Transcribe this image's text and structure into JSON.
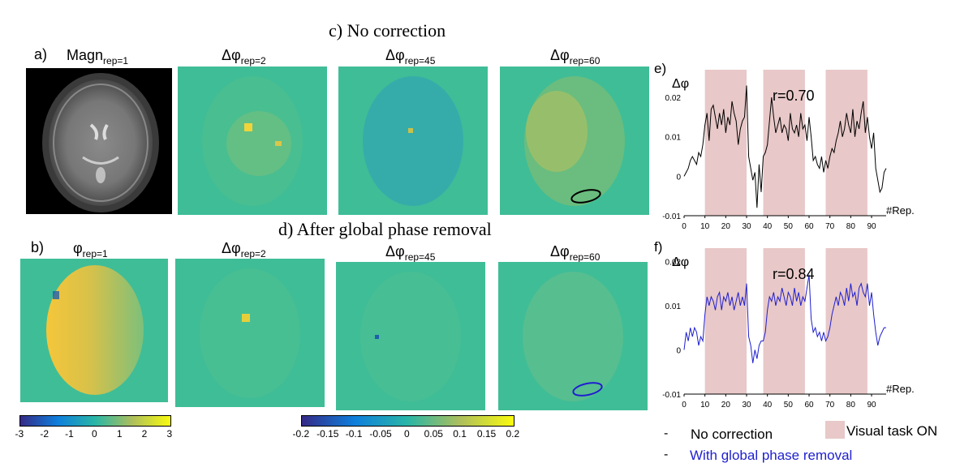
{
  "figure": {
    "section_c_title": "c)  No correction",
    "section_d_title": "d) After global phase removal",
    "panel_a_label": "a)",
    "panel_b_label": "b)",
    "magn_label": "Magn",
    "magn_sub": "rep=1",
    "phi_label": "φ",
    "phi_sub": "rep=1",
    "dphi_label": "Δφ",
    "sub_rep2": "rep=2",
    "sub_rep45": "rep=45",
    "sub_rep60": "rep=60"
  },
  "colorbars": {
    "left_ticks": [
      "-3",
      "-2",
      "-1",
      "0",
      "1",
      "2",
      "3"
    ],
    "right_ticks": [
      "-0.2",
      "-0.15",
      "-0.1",
      "-0.05",
      "0",
      "0.05",
      "0.1",
      "0.15",
      "0.2"
    ],
    "colors": {
      "low": "#352a87",
      "mid1": "#0f7fdc",
      "mid2": "#2ab6a6",
      "mid3": "#aebf5b",
      "high": "#f9fb0e"
    }
  },
  "chart_data": [
    {
      "type": "line",
      "panel_label": "e)",
      "ylabel": "Δφ",
      "xlabel": "#Rep.",
      "annotation": "r=0.70",
      "color": "#000000",
      "xlim": [
        0,
        97
      ],
      "ylim": [
        -0.01,
        0.027
      ],
      "x_ticks": [
        0,
        10,
        20,
        30,
        40,
        50,
        60,
        70,
        80,
        90
      ],
      "y_ticks": [
        -0.01,
        0,
        0.01,
        0.02
      ],
      "y_tick_labels": [
        "-0.01",
        "0",
        "0.01",
        "0.02"
      ],
      "task_blocks": [
        [
          10,
          30
        ],
        [
          38,
          58
        ],
        [
          68,
          88
        ]
      ],
      "values": [
        0,
        0.001,
        0.002,
        0.004,
        0.005,
        0.004,
        0.003,
        0.006,
        0.005,
        0.008,
        0.013,
        0.016,
        0.009,
        0.017,
        0.018,
        0.015,
        0.012,
        0.016,
        0.013,
        0.017,
        0.011,
        0.015,
        0.013,
        0.019,
        0.016,
        0.014,
        0.008,
        0.012,
        0.014,
        0.015,
        0.023,
        0.005,
        0.002,
        -0.001,
        0.001,
        -0.008,
        0.003,
        -0.004,
        0.005,
        0.006,
        0.008,
        0.014,
        0.02,
        0.015,
        0.011,
        0.013,
        0.015,
        0.011,
        0.013,
        0.012,
        0.009,
        0.016,
        0.012,
        0.011,
        0.013,
        0.01,
        0.016,
        0.012,
        0.013,
        0.009,
        0.015,
        0.01,
        0.004,
        0.005,
        0.003,
        0.002,
        0.005,
        0.001,
        0.004,
        0.002,
        0.005,
        0.007,
        0.006,
        0.009,
        0.011,
        0.014,
        0.01,
        0.012,
        0.016,
        0.013,
        0.011,
        0.017,
        0.01,
        0.014,
        0.012,
        0.016,
        0.019,
        0.011,
        0.015,
        0.01,
        0.007,
        0.011,
        0.002,
        -0.001,
        -0.004,
        -0.003,
        0.001,
        0.002
      ]
    },
    {
      "type": "line",
      "panel_label": "f)",
      "ylabel": "Δφ",
      "xlabel": "#Rep.",
      "annotation": "r=0.84",
      "color": "#1f1fcf",
      "xlim": [
        0,
        97
      ],
      "ylim": [
        -0.01,
        0.023
      ],
      "x_ticks": [
        0,
        10,
        20,
        30,
        40,
        50,
        60,
        70,
        80,
        90
      ],
      "y_ticks": [
        -0.01,
        0,
        0.01,
        0.02
      ],
      "y_tick_labels": [
        "-0.01",
        "0",
        "0.01",
        "0.02"
      ],
      "task_blocks": [
        [
          10,
          30
        ],
        [
          38,
          58
        ],
        [
          68,
          88
        ]
      ],
      "values": [
        0,
        0.004,
        0.002,
        0.005,
        0.003,
        0.005,
        0.004,
        0.001,
        0.003,
        0.002,
        0.008,
        0.012,
        0.01,
        0.012,
        0.011,
        0.009,
        0.012,
        0.013,
        0.009,
        0.012,
        0.011,
        0.013,
        0.01,
        0.012,
        0.009,
        0.011,
        0.013,
        0.01,
        0.012,
        0.01,
        0.015,
        0.003,
        0.001,
        -0.003,
        0.0,
        -0.002,
        0.001,
        0.002,
        0.002,
        0.004,
        0.009,
        0.012,
        0.011,
        0.013,
        0.01,
        0.012,
        0.011,
        0.014,
        0.012,
        0.01,
        0.013,
        0.012,
        0.01,
        0.014,
        0.011,
        0.013,
        0.01,
        0.012,
        0.011,
        0.014,
        0.017,
        0.007,
        0.004,
        0.005,
        0.003,
        0.004,
        0.002,
        0.004,
        0.002,
        0.003,
        0.005,
        0.008,
        0.01,
        0.012,
        0.01,
        0.013,
        0.012,
        0.01,
        0.014,
        0.011,
        0.015,
        0.012,
        0.013,
        0.01,
        0.014,
        0.015,
        0.013,
        0.012,
        0.015,
        0.01,
        0.013,
        0.008,
        0.004,
        0.001,
        0.003,
        0.004,
        0.005,
        0.005
      ]
    }
  ],
  "legend": {
    "dash": "-",
    "no_correction": "No correction",
    "global_removal": "With global phase removal",
    "task_on": "Visual task ON",
    "task_color": "#e8c8c8",
    "blue": "#1f1fcf"
  }
}
